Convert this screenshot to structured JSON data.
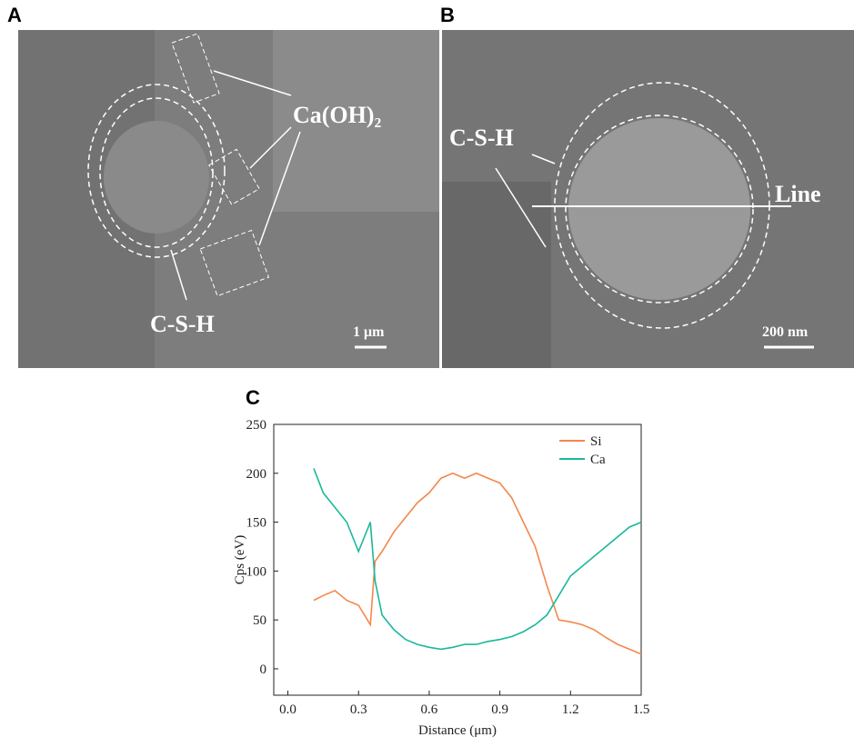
{
  "panels": [
    {
      "label": "A",
      "annotations": [
        "Ca(OH)₂",
        "C-S-H"
      ],
      "scale_bar": "1 μm"
    },
    {
      "label": "B",
      "annotations": [
        "C-S-H",
        "Line"
      ],
      "scale_bar": "200 nm"
    }
  ],
  "chart_data": {
    "type": "line",
    "panel_label": "C",
    "xlabel": "Distance (μm)",
    "ylabel": "Cps (eV)",
    "x": [
      0.11,
      0.15,
      0.2,
      0.25,
      0.3,
      0.35,
      0.37,
      0.4,
      0.45,
      0.5,
      0.55,
      0.6,
      0.65,
      0.7,
      0.75,
      0.8,
      0.85,
      0.9,
      0.95,
      1.0,
      1.05,
      1.1,
      1.15,
      1.2,
      1.25,
      1.3,
      1.35,
      1.4,
      1.45,
      1.5
    ],
    "series": [
      {
        "name": "Si",
        "color": "#f4874b",
        "values": [
          70,
          75,
          80,
          70,
          65,
          45,
          110,
          120,
          140,
          155,
          170,
          180,
          195,
          200,
          195,
          200,
          195,
          190,
          175,
          150,
          125,
          85,
          50,
          48,
          45,
          40,
          32,
          25,
          20,
          15
        ]
      },
      {
        "name": "Ca",
        "color": "#1bb89b",
        "values": [
          205,
          180,
          165,
          150,
          120,
          150,
          90,
          55,
          40,
          30,
          25,
          22,
          20,
          22,
          25,
          25,
          28,
          30,
          33,
          38,
          45,
          55,
          75,
          95,
          105,
          115,
          125,
          135,
          145,
          150
        ]
      }
    ],
    "xlim": [
      -0.06,
      1.5
    ],
    "xticks": [
      {
        "value": 0,
        "label": "0.0"
      },
      0.3,
      0.6,
      0.9,
      1.2,
      1.5
    ],
    "ylim": [
      -27,
      250
    ],
    "yticks": [
      0,
      50,
      100,
      150,
      200,
      250
    ],
    "legend": "upper right"
  }
}
